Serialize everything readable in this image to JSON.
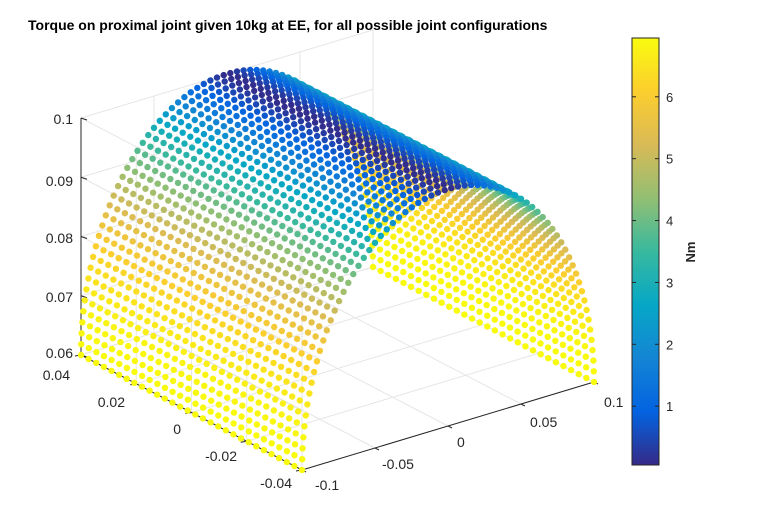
{
  "chart_data": {
    "type": "scatter3",
    "title": "Torque on proximal joint given 10kg at EE, for all possible joint configurations",
    "xlabel": "",
    "ylabel": "",
    "zlabel": "",
    "xlim": [
      -0.1,
      0.1
    ],
    "ylim": [
      -0.04,
      0.04
    ],
    "zlim": [
      0.06,
      0.1
    ],
    "x_ticks": [
      "-0.1",
      "-0.05",
      "0",
      "0.05",
      "0.1"
    ],
    "y_ticks": [
      "-0.04",
      "-0.02",
      "0",
      "0.02",
      "0.04"
    ],
    "z_ticks": [
      "0.06",
      "0.07",
      "0.08",
      "0.09",
      "0.1"
    ],
    "colormap": "parula",
    "colorbar": {
      "label": "Nm",
      "limits": [
        0.05,
        6.95
      ],
      "ticks": [
        "1",
        "2",
        "3",
        "4",
        "5",
        "6"
      ],
      "tick_values": [
        1,
        2,
        3,
        4,
        5,
        6
      ]
    },
    "surface": {
      "description_x_range": [
        -0.1,
        0.1
      ],
      "y_range": [
        -0.04,
        0.04
      ],
      "z_peak": 0.1,
      "z_min": 0.06,
      "torque_peak": 6.95,
      "torque_min": 0.05,
      "arc_count": 30,
      "points_per_arc": 70
    },
    "grid": true,
    "colorbar_position": "right"
  }
}
